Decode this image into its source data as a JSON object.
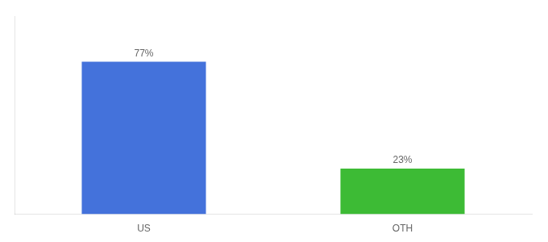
{
  "chart_data": {
    "type": "bar",
    "categories": [
      "US",
      "OTH"
    ],
    "values": [
      77,
      23
    ],
    "value_labels": [
      "77%",
      "23%"
    ],
    "data_labels": true,
    "colors": [
      "#4472db",
      "#3dbb35"
    ],
    "ylim": [
      0,
      100
    ],
    "grid": false,
    "tick_labels": "x"
  }
}
